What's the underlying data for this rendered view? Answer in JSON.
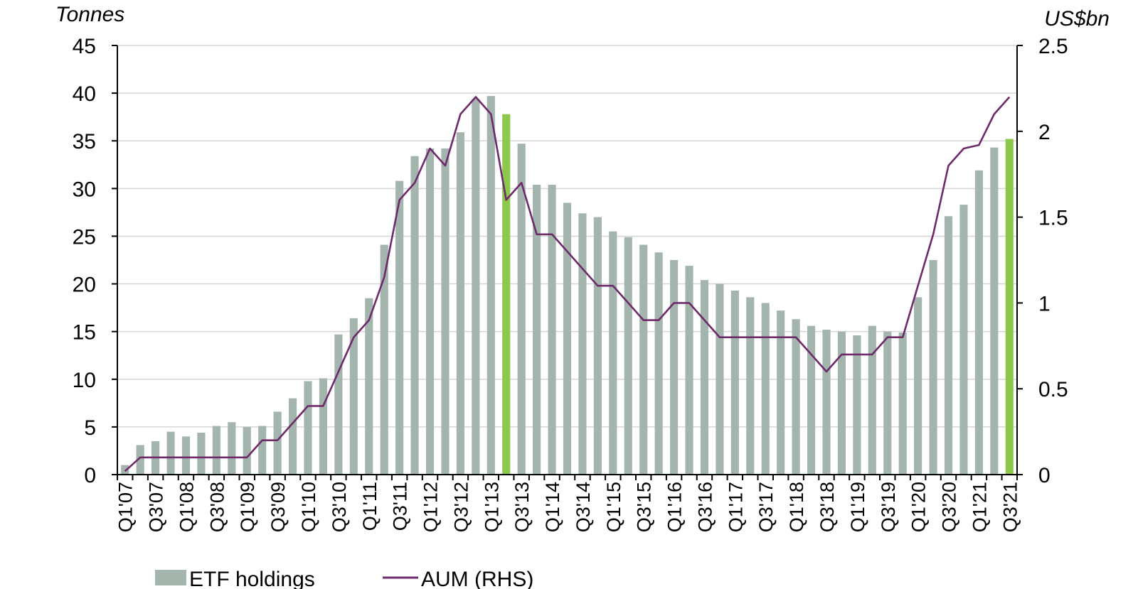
{
  "chart_data": {
    "type": "bar",
    "combo": "bar + line (secondary axis)",
    "left_axis_unit": "Tonnes",
    "right_axis_unit": "US$bn",
    "left_ylim": [
      0,
      45
    ],
    "left_ticks": [
      0,
      5,
      10,
      15,
      20,
      25,
      30,
      35,
      40,
      45
    ],
    "right_ylim": [
      0,
      2.5
    ],
    "right_ticks": [
      "0",
      "0.5",
      "1",
      "1.5",
      "2",
      "2.5"
    ],
    "grid": "horizontal",
    "legend_position": "bottom",
    "categories": [
      "Q1'07",
      "Q2'07",
      "Q3'07",
      "Q4'07",
      "Q1'08",
      "Q2'08",
      "Q3'08",
      "Q4'08",
      "Q1'09",
      "Q2'09",
      "Q3'09",
      "Q4'09",
      "Q1'10",
      "Q2'10",
      "Q3'10",
      "Q4'10",
      "Q1'11",
      "Q2'11",
      "Q3'11",
      "Q4'11",
      "Q1'12",
      "Q2'12",
      "Q3'12",
      "Q4'12",
      "Q1'13",
      "Q2'13",
      "Q3'13",
      "Q4'13",
      "Q1'14",
      "Q2'14",
      "Q3'14",
      "Q4'14",
      "Q1'15",
      "Q2'15",
      "Q3'15",
      "Q4'15",
      "Q1'16",
      "Q2'16",
      "Q3'16",
      "Q4'16",
      "Q1'17",
      "Q2'17",
      "Q3'17",
      "Q4'17",
      "Q1'18",
      "Q2'18",
      "Q3'18",
      "Q4'18",
      "Q1'19",
      "Q2'19",
      "Q3'19",
      "Q4'19",
      "Q1'20",
      "Q2'20",
      "Q3'20",
      "Q4'20",
      "Q1'21",
      "Q2'21",
      "Q3'21"
    ],
    "x_tick_labels": [
      "Q1'07",
      "Q3'07",
      "Q1'08",
      "Q3'08",
      "Q1'09",
      "Q3'09",
      "Q1'10",
      "Q3'10",
      "Q1'11",
      "Q3'11",
      "Q1'12",
      "Q3'12",
      "Q1'13",
      "Q3'13",
      "Q1'14",
      "Q3'14",
      "Q1'15",
      "Q3'15",
      "Q1'16",
      "Q3'16",
      "Q1'17",
      "Q3'17",
      "Q1'18",
      "Q3'18",
      "Q1'19",
      "Q3'19",
      "Q1'20",
      "Q3'20",
      "Q1'21",
      "Q3'21"
    ],
    "series": [
      {
        "name": "ETF holdings",
        "kind": "bar",
        "axis": "left",
        "color": "#a3b5ad",
        "highlight_color": "#8cc84b",
        "highlighted_categories": [
          "Q2'13",
          "Q3'21"
        ],
        "values": [
          1.0,
          3.1,
          3.5,
          4.5,
          4.0,
          4.4,
          5.1,
          5.5,
          5.0,
          5.1,
          6.6,
          8.0,
          9.8,
          10.1,
          14.7,
          16.4,
          18.5,
          24.1,
          30.8,
          33.4,
          34.2,
          34.2,
          35.9,
          39.4,
          39.7,
          37.8,
          34.7,
          30.4,
          30.4,
          28.5,
          27.4,
          27.0,
          25.5,
          24.9,
          24.1,
          23.3,
          22.5,
          21.9,
          20.4,
          20.0,
          19.3,
          18.6,
          18.0,
          17.2,
          16.3,
          15.6,
          15.2,
          15.0,
          14.6,
          15.6,
          15.0,
          14.9,
          18.6,
          22.5,
          27.1,
          28.3,
          31.9,
          34.3,
          35.2
        ]
      },
      {
        "name": "AUM (RHS)",
        "kind": "line",
        "axis": "right",
        "color": "#6e2a6a",
        "values": [
          0.02,
          0.1,
          0.1,
          0.1,
          0.1,
          0.1,
          0.1,
          0.1,
          0.1,
          0.2,
          0.2,
          0.3,
          0.4,
          0.4,
          0.6,
          0.8,
          0.9,
          1.15,
          1.6,
          1.7,
          1.9,
          1.8,
          2.1,
          2.2,
          2.1,
          1.6,
          1.7,
          1.4,
          1.4,
          1.3,
          1.2,
          1.1,
          1.1,
          1.0,
          0.9,
          0.9,
          1.0,
          1.0,
          0.9,
          0.8,
          0.8,
          0.8,
          0.8,
          0.8,
          0.8,
          0.7,
          0.6,
          0.7,
          0.7,
          0.7,
          0.8,
          0.8,
          1.1,
          1.4,
          1.8,
          1.9,
          1.92,
          2.1,
          2.2
        ]
      }
    ]
  }
}
